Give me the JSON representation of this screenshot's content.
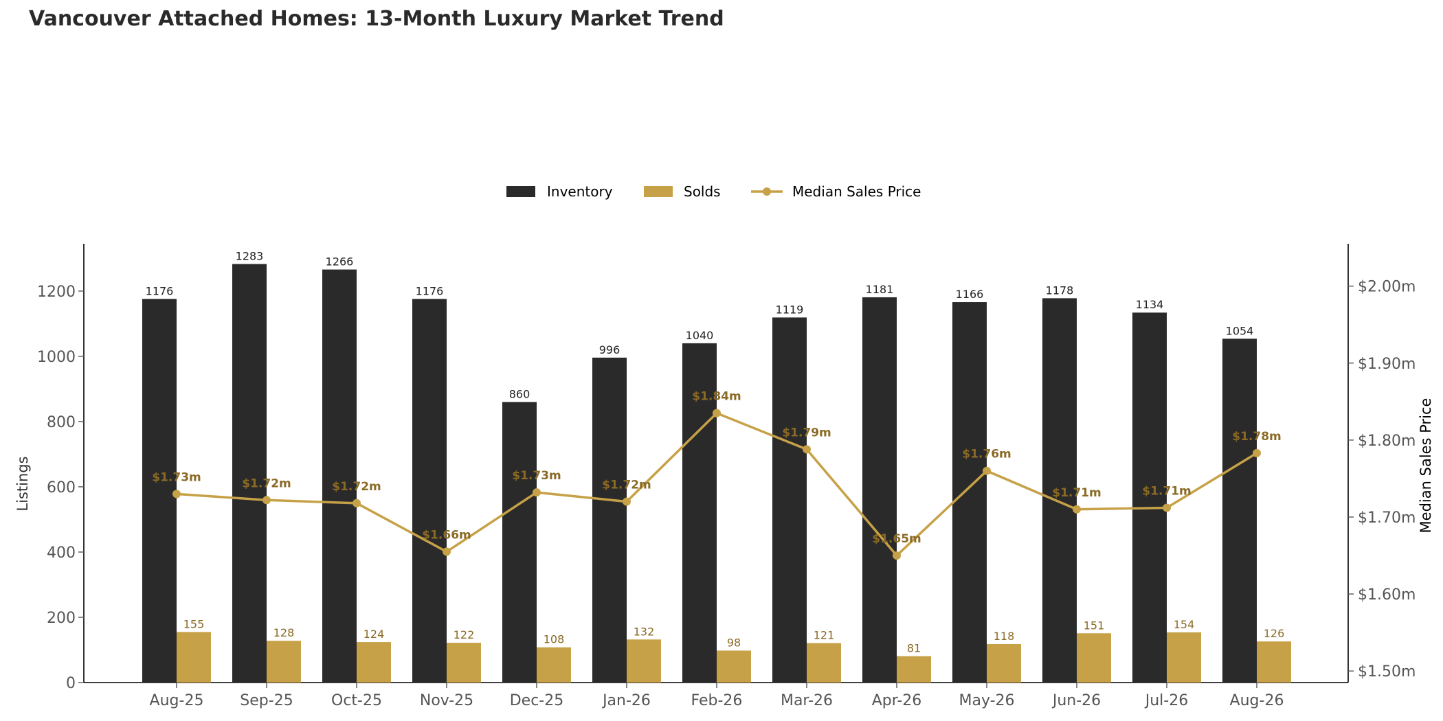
{
  "chart_data": {
    "type": "bar",
    "title": "Vancouver Attached Homes: 13-Month Luxury Market Trend",
    "categories": [
      "Aug-25",
      "Sep-25",
      "Oct-25",
      "Nov-25",
      "Dec-25",
      "Jan-26",
      "Feb-26",
      "Mar-26",
      "Apr-26",
      "May-26",
      "Jun-26",
      "Jul-26",
      "Aug-26"
    ],
    "series": [
      {
        "name": "Inventory",
        "type": "bar",
        "axis": "left",
        "values": [
          1176,
          1283,
          1266,
          1176,
          860,
          996,
          1040,
          1119,
          1181,
          1166,
          1178,
          1134,
          1054
        ]
      },
      {
        "name": "Solds",
        "type": "bar",
        "axis": "left",
        "values": [
          155,
          128,
          124,
          122,
          108,
          132,
          98,
          121,
          81,
          118,
          151,
          154,
          126
        ]
      },
      {
        "name": "Median Sales Price",
        "type": "line",
        "axis": "right",
        "values": [
          1.73,
          1.722,
          1.718,
          1.655,
          1.732,
          1.72,
          1.835,
          1.788,
          1.65,
          1.76,
          1.71,
          1.712,
          1.783
        ],
        "labels": [
          "$1.73m",
          "$1.72m",
          "$1.72m",
          "$1.66m",
          "$1.73m",
          "$1.72m",
          "$1.84m",
          "$1.79m",
          "$1.65m",
          "$1.76m",
          "$1.71m",
          "$1.71m",
          "$1.78m"
        ]
      }
    ],
    "ylabel": "Listings",
    "y2label": "Median Sales Price",
    "ylim": [
      0,
      1345
    ],
    "y2lim": [
      1.485,
      2.055
    ],
    "yticks": [
      0,
      200,
      400,
      600,
      800,
      1000,
      1200
    ],
    "y2ticks": [
      1.5,
      1.6,
      1.7,
      1.8,
      1.9,
      2.0
    ],
    "y2ticklabels": [
      "$1.50m",
      "$1.60m",
      "$1.70m",
      "$1.80m",
      "$1.90m",
      "$2.00m"
    ],
    "legend_position": "top-center",
    "grid": false,
    "colors": {
      "inventory": "#2a2a2a",
      "solds": "#c6a147",
      "price": "#c6a147",
      "price_label": "#8a6a25",
      "solds_label": "#8a6a25",
      "axis": "#000000",
      "tick_text": "#555555"
    }
  }
}
